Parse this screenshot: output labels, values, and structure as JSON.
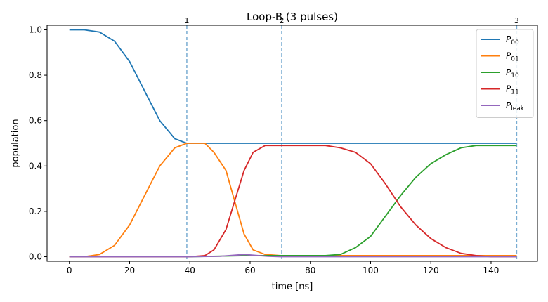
{
  "chart_data": {
    "type": "line",
    "title": "Loop-B (3 pulses)",
    "xlabel": "time [ns]",
    "ylabel": "population",
    "xlim": [
      -7.4,
      155.4
    ],
    "ylim": [
      -0.02,
      1.02
    ],
    "xticks": [
      0,
      20,
      40,
      60,
      80,
      100,
      120,
      140
    ],
    "yticks": [
      0.0,
      0.2,
      0.4,
      0.6,
      0.8,
      1.0
    ],
    "xtick_labels": [
      "0",
      "20",
      "40",
      "60",
      "80",
      "100",
      "120",
      "140"
    ],
    "ytick_labels": [
      "0.0",
      "0.2",
      "0.4",
      "0.6",
      "0.8",
      "1.0"
    ],
    "grid": false,
    "legend_position": "top-right",
    "pulse_markers": [
      {
        "x": 39,
        "label": "1"
      },
      {
        "x": 70.5,
        "label": "2"
      },
      {
        "x": 148.5,
        "label": "3"
      }
    ],
    "series": [
      {
        "name": "P00",
        "sub": "00",
        "color": "#1f77b4",
        "x": [
          0,
          5,
          10,
          15,
          20,
          25,
          30,
          35,
          39,
          45,
          50,
          55,
          60,
          70,
          80,
          90,
          100,
          110,
          120,
          130,
          140,
          148.5
        ],
        "y": [
          1.0,
          1.0,
          0.99,
          0.95,
          0.86,
          0.73,
          0.6,
          0.52,
          0.5,
          0.5,
          0.5,
          0.5,
          0.5,
          0.5,
          0.5,
          0.5,
          0.5,
          0.5,
          0.5,
          0.5,
          0.5,
          0.5
        ]
      },
      {
        "name": "P01",
        "sub": "01",
        "color": "#ff7f0e",
        "x": [
          0,
          5,
          10,
          15,
          20,
          25,
          30,
          35,
          39,
          45,
          48,
          52,
          55,
          58,
          61,
          65,
          70,
          80,
          100,
          120,
          140,
          148.5
        ],
        "y": [
          0.0,
          0.0,
          0.01,
          0.05,
          0.14,
          0.27,
          0.4,
          0.48,
          0.5,
          0.5,
          0.46,
          0.38,
          0.24,
          0.1,
          0.03,
          0.01,
          0.005,
          0.005,
          0.005,
          0.005,
          0.005,
          0.005
        ]
      },
      {
        "name": "P10",
        "sub": "10",
        "color": "#2ca02c",
        "x": [
          0,
          40,
          60,
          70,
          80,
          85,
          90,
          95,
          100,
          105,
          110,
          115,
          120,
          125,
          130,
          135,
          140,
          148.5
        ],
        "y": [
          0.0,
          0.0,
          0.005,
          0.005,
          0.005,
          0.005,
          0.01,
          0.04,
          0.09,
          0.18,
          0.27,
          0.35,
          0.41,
          0.45,
          0.48,
          0.49,
          0.49,
          0.49
        ]
      },
      {
        "name": "P11",
        "sub": "11",
        "color": "#d62728",
        "x": [
          0,
          40,
          45,
          48,
          52,
          55,
          58,
          61,
          65,
          70,
          80,
          85,
          90,
          95,
          100,
          105,
          110,
          115,
          120,
          125,
          130,
          135,
          140,
          148.5
        ],
        "y": [
          0.0,
          0.0,
          0.005,
          0.03,
          0.12,
          0.25,
          0.38,
          0.46,
          0.49,
          0.49,
          0.49,
          0.49,
          0.48,
          0.46,
          0.41,
          0.32,
          0.22,
          0.14,
          0.08,
          0.04,
          0.015,
          0.005,
          0.0,
          0.0
        ]
      },
      {
        "name": "Pleak",
        "sub": "leak",
        "color": "#9467bd",
        "x": [
          0,
          40,
          50,
          55,
          58,
          62,
          66,
          70,
          100,
          148.5
        ],
        "y": [
          0.0,
          0.0,
          0.002,
          0.007,
          0.01,
          0.006,
          0.002,
          0.0,
          0.0,
          0.0
        ]
      }
    ]
  }
}
